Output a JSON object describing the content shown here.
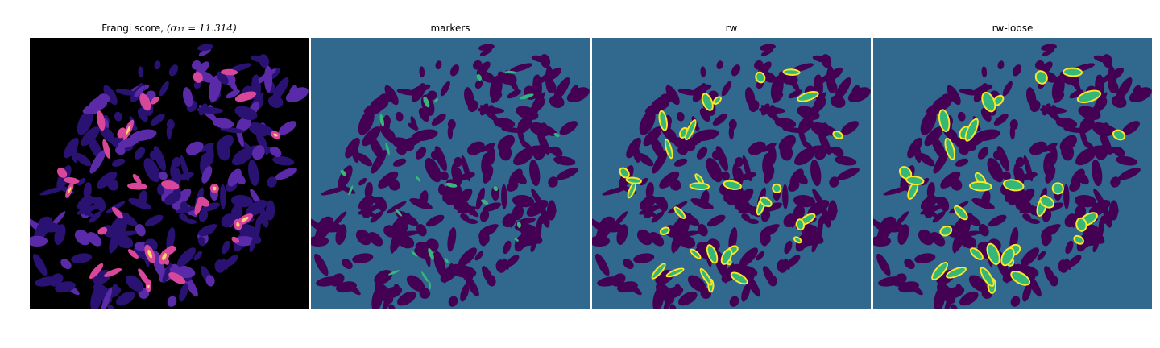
{
  "figure": {
    "panels": [
      {
        "title": "Frangi score, ",
        "title_math": "(σ₁₁ = 11.314)",
        "colormap": "magma"
      },
      {
        "title": "markers",
        "title_math": "",
        "colormap": "viridis"
      },
      {
        "title": "rw",
        "title_math": "",
        "colormap": "viridis"
      },
      {
        "title": "rw-loose",
        "title_math": "",
        "colormap": "viridis"
      }
    ]
  },
  "colors": {
    "frangi_background": "#000000",
    "frangi_low": "#2a1273",
    "frangi_mid": "#5a2aa8",
    "frangi_high": "#d9479a",
    "frangi_peak": "#fcd46a",
    "label_background": "#31688e",
    "label_tissue": "#440154",
    "label_marker": "#35b779",
    "label_rw": "#fde725"
  }
}
